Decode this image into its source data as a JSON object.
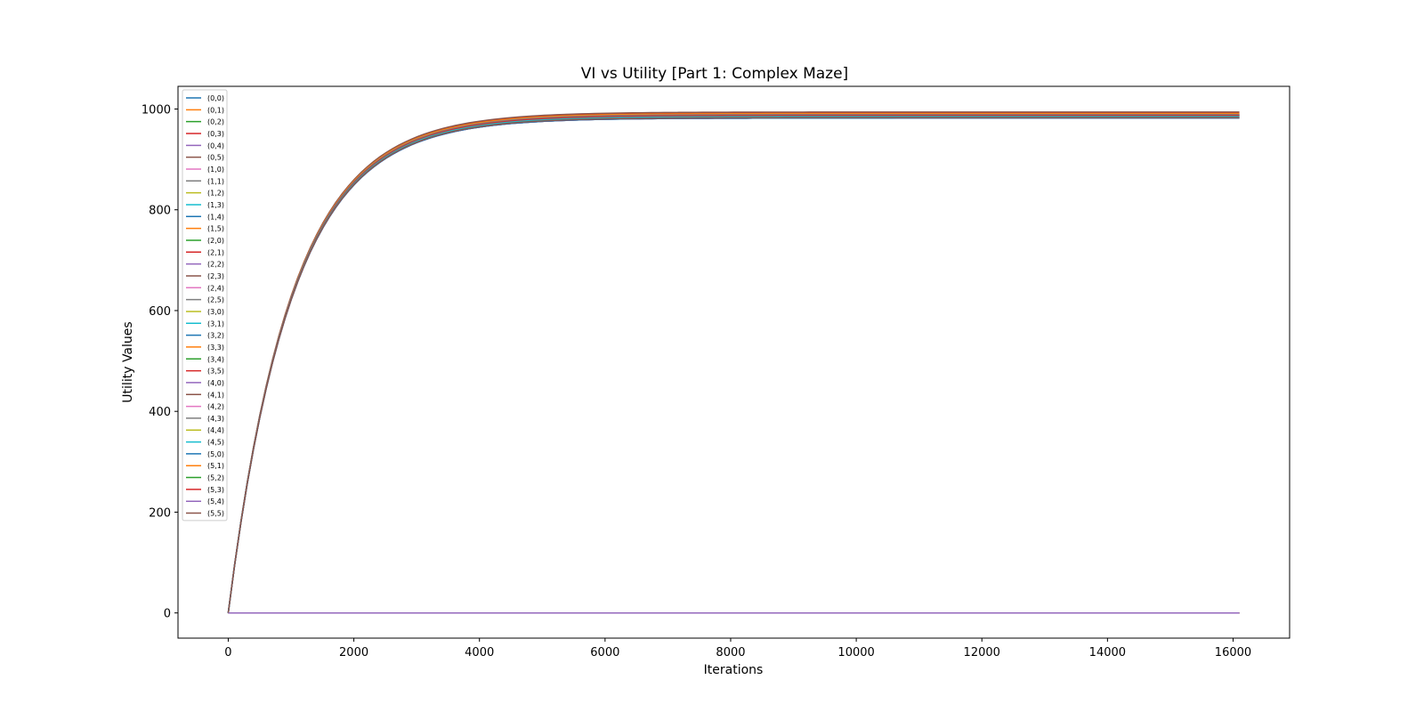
{
  "chart_data": {
    "type": "line",
    "title": "VI vs Utility [Part 1: Complex Maze]",
    "xlabel": "Iterations",
    "ylabel": "Utility Values",
    "xlim": [
      -800,
      16900
    ],
    "ylim": [
      -50,
      1045
    ],
    "xticks": [
      0,
      2000,
      4000,
      6000,
      8000,
      10000,
      12000,
      14000,
      16000
    ],
    "yticks": [
      0,
      200,
      400,
      600,
      800,
      1000
    ],
    "x_max": 16100,
    "curve_model": "exponential approach from 0 at iteration 0 to the final value",
    "time_constant_iterations": 1000,
    "legend_position": "upper-left",
    "grid": false,
    "palette": [
      "#1f77b4",
      "#ff7f0e",
      "#2ca02c",
      "#d62728",
      "#9467bd",
      "#8c564b",
      "#e377c2",
      "#7f7f7f",
      "#bcbd22",
      "#17becf"
    ],
    "series": [
      {
        "name": "(0,0)",
        "final": 982
      },
      {
        "name": "(0,1)",
        "final": 0
      },
      {
        "name": "(0,2)",
        "final": 990
      },
      {
        "name": "(0,3)",
        "final": 992
      },
      {
        "name": "(0,4)",
        "final": 988
      },
      {
        "name": "(0,5)",
        "final": 994
      },
      {
        "name": "(1,0)",
        "final": 986
      },
      {
        "name": "(1,1)",
        "final": 0
      },
      {
        "name": "(1,2)",
        "final": 0
      },
      {
        "name": "(1,3)",
        "final": 0
      },
      {
        "name": "(1,4)",
        "final": 0
      },
      {
        "name": "(1,5)",
        "final": 991
      },
      {
        "name": "(2,0)",
        "final": 988
      },
      {
        "name": "(2,1)",
        "final": 986
      },
      {
        "name": "(2,2)",
        "final": 0
      },
      {
        "name": "(2,3)",
        "final": 988
      },
      {
        "name": "(2,4)",
        "final": 988
      },
      {
        "name": "(2,5)",
        "final": 989
      },
      {
        "name": "(3,0)",
        "final": 986
      },
      {
        "name": "(3,1)",
        "final": 984
      },
      {
        "name": "(3,2)",
        "final": 984
      },
      {
        "name": "(3,3)",
        "final": 0
      },
      {
        "name": "(3,4)",
        "final": 0
      },
      {
        "name": "(3,5)",
        "final": 987
      },
      {
        "name": "(4,0)",
        "final": 984
      },
      {
        "name": "(4,1)",
        "final": 982
      },
      {
        "name": "(4,2)",
        "final": 982
      },
      {
        "name": "(4,3)",
        "final": 983
      },
      {
        "name": "(4,4)",
        "final": 0
      },
      {
        "name": "(4,5)",
        "final": 985
      },
      {
        "name": "(5,0)",
        "final": 982
      },
      {
        "name": "(5,1)",
        "final": 0
      },
      {
        "name": "(5,2)",
        "final": 0
      },
      {
        "name": "(5,3)",
        "final": 0
      },
      {
        "name": "(5,4)",
        "final": 0
      },
      {
        "name": "(5,5)",
        "final": 983
      }
    ]
  }
}
